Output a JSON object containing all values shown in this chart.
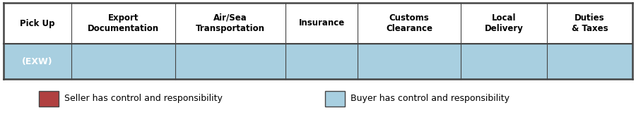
{
  "columns": [
    "Pick Up",
    "Export\nDocumentation",
    "Air/Sea\nTransportation",
    "Insurance",
    "Customs\nClearance",
    "Local\nDelivery",
    "Duties\n& Taxes"
  ],
  "col_widths": [
    0.95,
    1.45,
    1.55,
    1.0,
    1.45,
    1.2,
    1.2
  ],
  "incoterm_label": "(EXW)",
  "seller_color": "#b04040",
  "buyer_color": "#a8cfe0",
  "seller_segments": [],
  "buyer_segments": [
    0,
    1,
    2,
    3,
    4,
    5,
    6
  ],
  "legend_seller_color": "#b04040",
  "legend_buyer_color": "#a8cfe0",
  "legend_seller_text": "Seller has control and responsibility",
  "legend_buyer_text": "Buyer has control and responsibility",
  "border_color": "#444444",
  "header_fontsize": 8.5,
  "label_fontsize": 9.0,
  "legend_fontsize": 9.0,
  "fig_width": 9.0,
  "fig_height": 1.63,
  "dpi": 100
}
